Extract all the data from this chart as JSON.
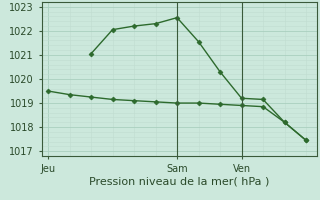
{
  "line1_x": [
    0,
    1,
    2,
    3,
    4,
    5,
    6,
    7,
    8,
    9,
    10,
    11,
    12
  ],
  "line1_y": [
    1019.5,
    1019.35,
    1019.25,
    1019.15,
    1019.1,
    1019.05,
    1019.0,
    1019.0,
    1018.95,
    1018.9,
    1018.85,
    1018.2,
    1017.45
  ],
  "line2_x": [
    2,
    3,
    4,
    5,
    6,
    7,
    8,
    9,
    10,
    11,
    12
  ],
  "line2_y": [
    1021.05,
    1022.05,
    1022.2,
    1022.3,
    1022.55,
    1021.55,
    1020.3,
    1019.2,
    1019.15,
    1018.2,
    1017.45
  ],
  "line_color": "#2d6a2d",
  "background_color": "#cce8dc",
  "grid_major_color": "#aacfbf",
  "grid_minor_color": "#c0ddd0",
  "xlabel": "Pression niveau de la mer( hPa )",
  "xtick_positions": [
    0,
    6,
    9
  ],
  "xtick_labels": [
    "Jeu",
    "Sam",
    "Ven"
  ],
  "ylim": [
    1016.8,
    1023.2
  ],
  "ytick_values": [
    1017,
    1018,
    1019,
    1020,
    1021,
    1022,
    1023
  ],
  "vline_positions": [
    6,
    9
  ],
  "marker": "D",
  "markersize": 2.5,
  "linewidth": 1.0,
  "xlabel_fontsize": 8,
  "tick_fontsize": 7
}
